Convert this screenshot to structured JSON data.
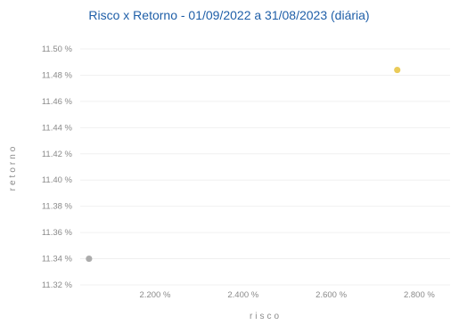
{
  "chart_data": {
    "type": "scatter",
    "title": "Risco x Retorno - 01/09/2022 a 31/08/2023 (diária)",
    "xlabel": "risco",
    "ylabel": "retorno",
    "x_ticks": [
      "2.200 %",
      "2.400 %",
      "2.600 %",
      "2.800 %"
    ],
    "x_tick_values": [
      2.2,
      2.4,
      2.6,
      2.8
    ],
    "y_ticks": [
      "11.32 %",
      "11.34 %",
      "11.36 %",
      "11.38 %",
      "11.40 %",
      "11.42 %",
      "11.44 %",
      "11.46 %",
      "11.48 %",
      "11.50 %"
    ],
    "y_tick_values": [
      11.32,
      11.34,
      11.36,
      11.38,
      11.4,
      11.42,
      11.44,
      11.46,
      11.48,
      11.5
    ],
    "xlim": [
      2.03,
      2.87
    ],
    "ylim": [
      11.32,
      11.5
    ],
    "grid": false,
    "series": [
      {
        "color": "#a3a3a3",
        "points": [
          {
            "x": 2.05,
            "y": 11.34
          }
        ]
      },
      {
        "color": "#e8c547",
        "points": [
          {
            "x": 2.75,
            "y": 11.484
          }
        ]
      }
    ]
  }
}
